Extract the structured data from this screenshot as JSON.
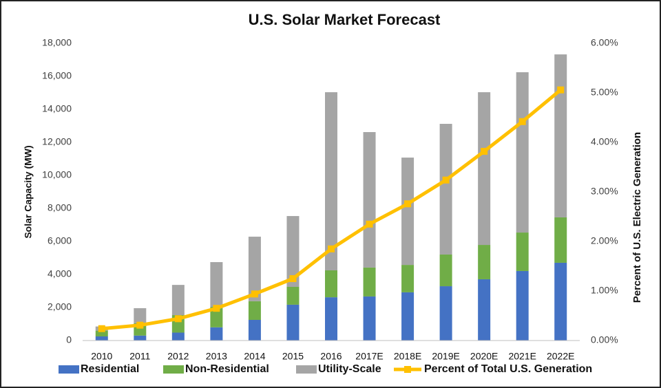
{
  "chart_data": {
    "type": "bar",
    "stacked": true,
    "title": "U.S. Solar Market Forecast",
    "y_label": "Solar Capacity (MW)",
    "y2_label": "Percent of U.S. Electric Generation",
    "categories": [
      "2010",
      "2011",
      "2012",
      "2013",
      "2014",
      "2015",
      "2016",
      "2017E",
      "2018E",
      "2019E",
      "2020E",
      "2021E",
      "2022E"
    ],
    "series": [
      {
        "name": "Residential",
        "color": "#4472c4",
        "values": [
          250,
          300,
          480,
          800,
          1250,
          2170,
          2620,
          2670,
          2920,
          3290,
          3710,
          4210,
          4710
        ]
      },
      {
        "name": "Non-Residential",
        "color": "#70ad47",
        "values": [
          350,
          750,
          1060,
          1240,
          1130,
          1080,
          1630,
          1750,
          1660,
          1920,
          2080,
          2330,
          2750
        ]
      },
      {
        "name": "Utility-Scale",
        "color": "#a5a5a5",
        "values": [
          250,
          910,
          1830,
          2710,
          3910,
          4290,
          10790,
          8205,
          6500,
          7915,
          9250,
          9710,
          9870
        ]
      },
      {
        "name": "Percent of Total U.S. Generation",
        "color": "#ffc000",
        "type": "line",
        "axis": "y2",
        "values": [
          0.24,
          0.31,
          0.44,
          0.65,
          0.94,
          1.25,
          1.85,
          2.35,
          2.76,
          3.24,
          3.82,
          4.42,
          5.06
        ]
      }
    ],
    "ylim": [
      0,
      18000
    ],
    "yticks": [
      0,
      {
        "value": 2000,
        "label": "2,000"
      },
      {
        "value": 4000,
        "label": "4,000"
      },
      {
        "value": 6000,
        "label": "6,000"
      },
      {
        "value": 8000,
        "label": "8,000"
      },
      {
        "value": 10000,
        "label": "10,000"
      },
      {
        "value": 12000,
        "label": "12,000"
      },
      {
        "value": 14000,
        "label": "14,000"
      },
      {
        "value": 16000,
        "label": "16,000"
      },
      {
        "value": 18000,
        "label": "18,000"
      }
    ],
    "y2lim": [
      0,
      6
    ],
    "y2ticks": [
      {
        "value": 0,
        "label": "0.00%"
      },
      {
        "value": 1,
        "label": "1.00%"
      },
      {
        "value": 2,
        "label": "2.00%"
      },
      {
        "value": 3,
        "label": "3.00%"
      },
      {
        "value": 4,
        "label": "4.00%"
      },
      {
        "value": 5,
        "label": "5.00%"
      },
      {
        "value": 6,
        "label": "6.00%"
      }
    ],
    "grid": false,
    "legend": "bottom"
  }
}
